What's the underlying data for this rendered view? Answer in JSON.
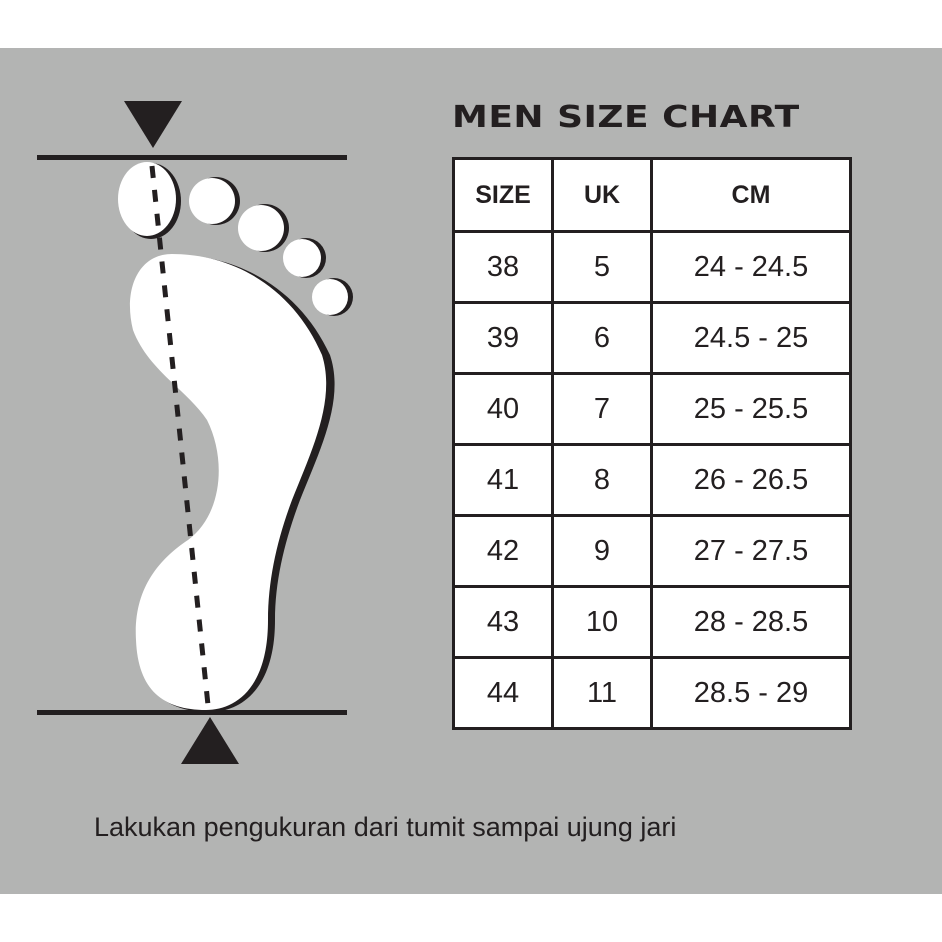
{
  "title": "MEN SIZE CHART",
  "table": {
    "headers": [
      "SIZE",
      "UK",
      "CM"
    ],
    "rows": [
      [
        "38",
        "5",
        "24 - 24.5"
      ],
      [
        "39",
        "6",
        "24.5 - 25"
      ],
      [
        "40",
        "7",
        "25 - 25.5"
      ],
      [
        "41",
        "8",
        "26 - 26.5"
      ],
      [
        "42",
        "9",
        "27 - 27.5"
      ],
      [
        "43",
        "10",
        "28 - 28.5"
      ],
      [
        "44",
        "11",
        "28.5 - 29"
      ]
    ]
  },
  "note": "Lakukan pengukuran dari tumit sampai ujung jari",
  "colors": {
    "background": "#b3b4b3",
    "ink": "#231f20",
    "foot": "#ffffff"
  }
}
